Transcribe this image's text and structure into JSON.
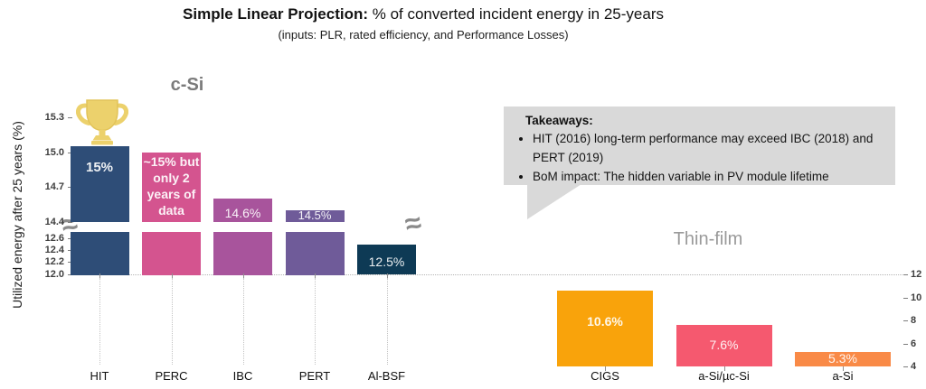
{
  "title": {
    "bold": "Simple Linear Projection:",
    "rest": " % of converted incident energy in 25-years"
  },
  "subtitle": "(inputs: PLR, rated efficiency, and Performance Losses)",
  "takeaways": {
    "heading": "Takeaways:",
    "items": [
      "HIT (2016)  long-term performance may exceed IBC  (2018) and PERT (2019)",
      "BoM impact: The hidden variable in PV module lifetime"
    ]
  },
  "chart_data": {
    "type": "bar",
    "title": "Simple Linear Projection: % of converted incident energy in 25-years",
    "subtitle": "(inputs: PLR, rated efficiency, and Performance Losses)",
    "ylabel": "Utilized energy after 25 years (%)",
    "grid": false,
    "axis_break": {
      "between_values": [
        14.4,
        12.6
      ],
      "symbol": "≈"
    },
    "left_axis_ticks": [
      "15.3",
      "15.0",
      "14.7",
      "14.4",
      "12.6",
      "12.4",
      "12.2",
      "12.0"
    ],
    "right_axis_ticks": [
      "12",
      "10",
      "8",
      "6",
      "4"
    ],
    "left_axis_range_upper": [
      14.4,
      15.3
    ],
    "left_axis_range_lower": [
      12.0,
      12.6
    ],
    "right_axis_range": [
      4,
      12
    ],
    "groups": [
      {
        "name": "c-Si",
        "bars": [
          {
            "category": "HIT",
            "value": 15.05,
            "label": "15%",
            "color": "#2E4D77",
            "label_bold": true,
            "trophy": true
          },
          {
            "category": "PERC",
            "value": 15.0,
            "label": "~15% but\nonly 2\nyears of\ndata",
            "color": "#D4548F",
            "label_bold": true,
            "trophy": false
          },
          {
            "category": "IBC",
            "value": 14.6,
            "label": "14.6%",
            "color": "#A8549C",
            "label_bold": false,
            "trophy": false
          },
          {
            "category": "PERT",
            "value": 14.5,
            "label": "14.5%",
            "color": "#6F5B99",
            "label_bold": false,
            "trophy": false
          },
          {
            "category": "Al-BSF",
            "value": 12.5,
            "label": "12.5%",
            "color": "#0E3A55",
            "label_bold": false,
            "trophy": false
          }
        ]
      },
      {
        "name": "Thin-film",
        "bar_base_value": 4,
        "bars": [
          {
            "category": "CIGS",
            "value": 10.6,
            "label": "10.6%",
            "color": "#F9A30B",
            "label_bold": true,
            "trophy": false
          },
          {
            "category": "a-Si/µc-Si",
            "value": 7.6,
            "label": "7.6%",
            "color": "#F5596F",
            "label_bold": false,
            "trophy": false
          },
          {
            "category": "a-Si",
            "value": 5.3,
            "label": "5.3%",
            "color": "#F98A47",
            "label_bold": false,
            "trophy": false
          }
        ]
      }
    ]
  },
  "icons": {
    "trophy_color": "#ECD16C",
    "trophy_outline": "#E2C358"
  }
}
